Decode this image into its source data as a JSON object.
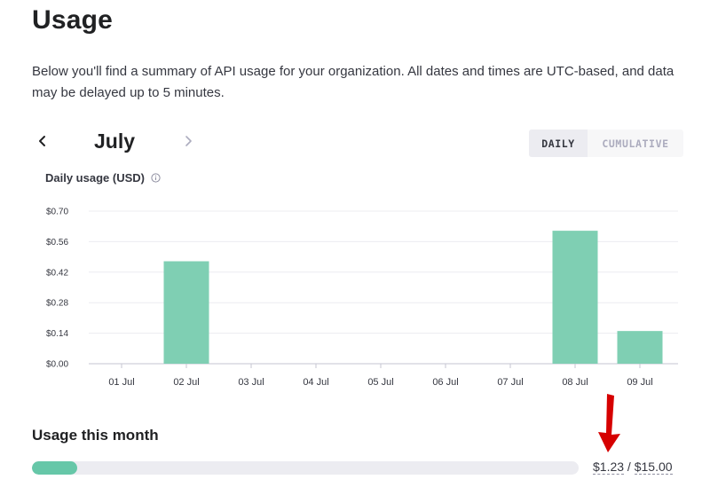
{
  "page": {
    "title": "Usage",
    "description": "Below you'll find a summary of API usage for your organization. All dates and times are UTC-based, and data may be delayed up to 5 minutes."
  },
  "month_nav": {
    "month": "July",
    "prev_icon": "chevron-left-icon",
    "next_icon": "chevron-right-icon"
  },
  "view_toggle": {
    "daily_label": "DAILY",
    "cumulative_label": "CUMULATIVE",
    "selected": "DAILY"
  },
  "chart_data": {
    "type": "bar",
    "title": "Daily usage (USD)",
    "categories": [
      "01 Jul",
      "02 Jul",
      "03 Jul",
      "04 Jul",
      "05 Jul",
      "06 Jul",
      "07 Jul",
      "08 Jul",
      "09 Jul"
    ],
    "values": [
      0,
      0.47,
      0,
      0,
      0,
      0,
      0,
      0.61,
      0.15
    ],
    "yticks": [
      "$0.00",
      "$0.14",
      "$0.28",
      "$0.42",
      "$0.56",
      "$0.70"
    ],
    "ytick_values": [
      0,
      0.14,
      0.28,
      0.42,
      0.56,
      0.7
    ],
    "ylim": [
      0,
      0.7
    ],
    "grid": true,
    "bar_color": "#7fcfb3"
  },
  "usage_this_month": {
    "title": "Usage this month",
    "used": "$1.23",
    "separator": " / ",
    "limit": "$15.00",
    "fraction": 0.082,
    "bar_color": "#66c7a8"
  },
  "annotation": {
    "arrow_color": "#d60000"
  }
}
